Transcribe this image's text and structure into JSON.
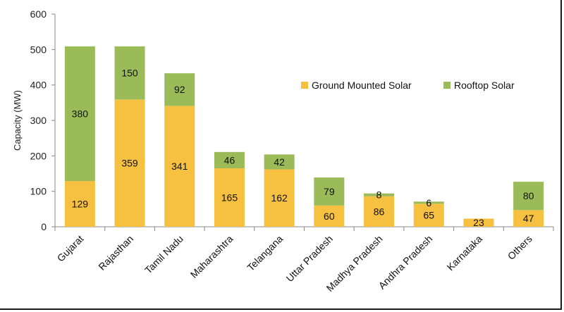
{
  "chart_data": {
    "type": "bar",
    "stacked": true,
    "title": "",
    "xlabel": "",
    "ylabel": "Capacity (MW)",
    "ylim": [
      0,
      600
    ],
    "yticks": [
      0,
      100,
      200,
      300,
      400,
      500,
      600
    ],
    "grid": false,
    "legend_position": "top-right",
    "categories": [
      "Gujarat",
      "Rajasthan",
      "Tamil Nadu",
      "Maharashtra",
      "Telangana",
      "Uttar Pradesh",
      "Madhya Pradesh",
      "Andhra Pradesh",
      "Karnataka",
      "Others"
    ],
    "series": [
      {
        "name": "Ground Mounted Solar",
        "color": "#f6c040",
        "values": [
          129,
          359,
          341,
          165,
          162,
          60,
          86,
          65,
          23,
          47
        ]
      },
      {
        "name": "Rooftop Solar",
        "color": "#9bbb59",
        "values": [
          380,
          150,
          92,
          46,
          42,
          79,
          8,
          6,
          0,
          80
        ]
      }
    ]
  }
}
